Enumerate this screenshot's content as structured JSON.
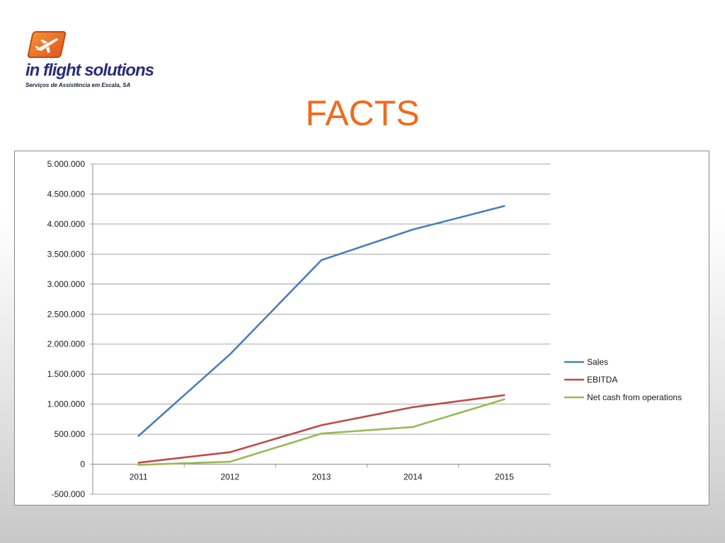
{
  "logo": {
    "name": "in flight solutions",
    "tagline": "Serviços de Assistência em Escala, SA"
  },
  "slide": {
    "title": "FACTS"
  },
  "chart_data": {
    "type": "line",
    "categories": [
      "2011",
      "2012",
      "2013",
      "2014",
      "2015"
    ],
    "series": [
      {
        "name": "Sales",
        "color": "#4a7ebb",
        "values": [
          470000,
          1830000,
          3400000,
          3910000,
          4300000
        ]
      },
      {
        "name": "EBITDA",
        "color": "#be4b48",
        "values": [
          25000,
          200000,
          650000,
          950000,
          1150000
        ]
      },
      {
        "name": "Net cash from operations",
        "color": "#98b954",
        "values": [
          -10000,
          40000,
          510000,
          620000,
          1080000
        ]
      }
    ],
    "ylim": [
      -500000,
      5000000
    ],
    "yticks": [
      -500000,
      0,
      500000,
      1000000,
      1500000,
      2000000,
      2500000,
      3000000,
      3500000,
      4000000,
      4500000,
      5000000
    ],
    "ytick_labels": [
      "-500.000",
      "0",
      "500.000",
      "1.000.000",
      "1.500.000",
      "2.000.000",
      "2.500.000",
      "3.000.000",
      "3.500.000",
      "4.000.000",
      "4.500.000",
      "5.000.000"
    ],
    "grid": true,
    "legend": "right",
    "title": "",
    "xlabel": "",
    "ylabel": ""
  }
}
